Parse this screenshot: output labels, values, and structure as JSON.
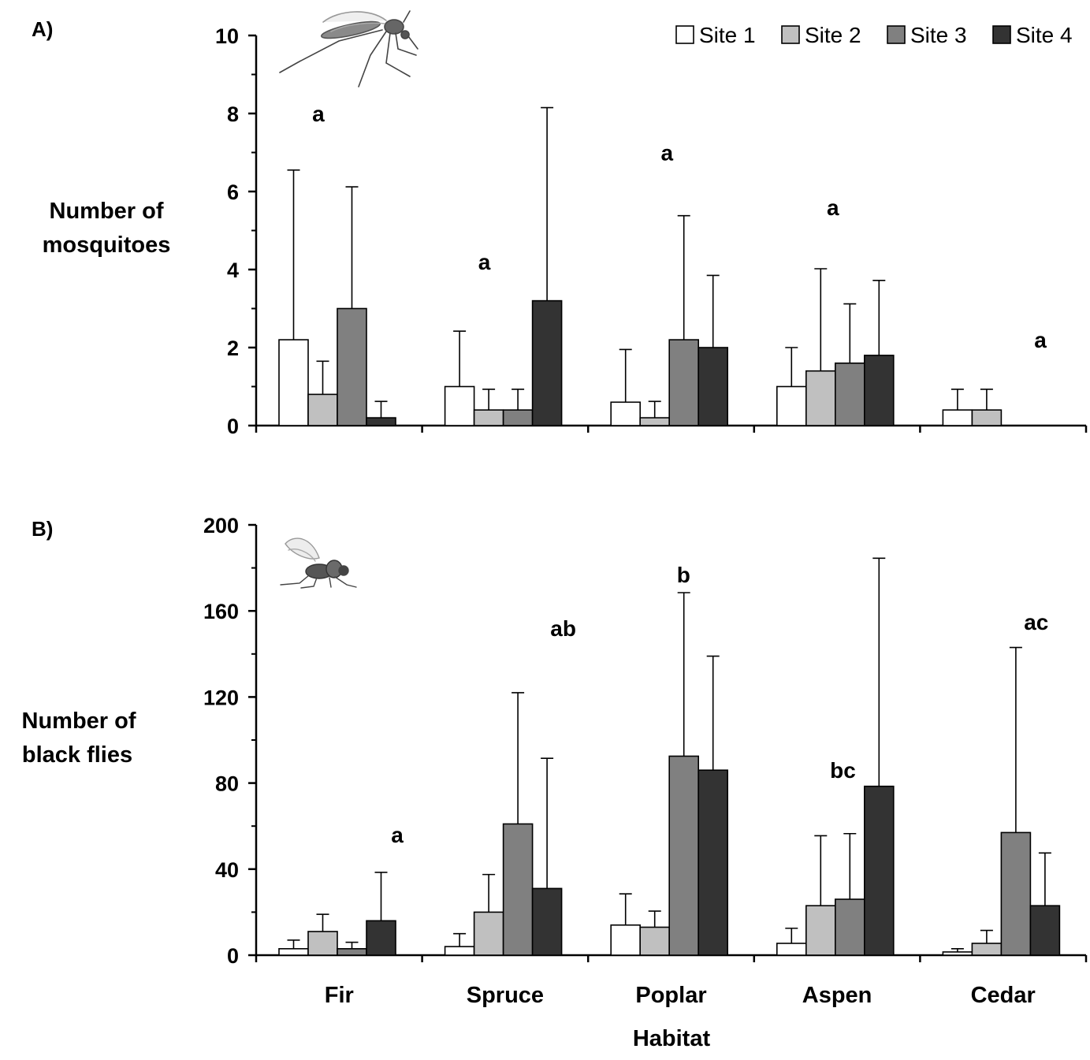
{
  "site_colors": [
    "#ffffff",
    "#c0c0c0",
    "#808080",
    "#333333"
  ],
  "x_axis_title": "Habitat",
  "chart_data": [
    {
      "type": "bar",
      "panel_label": "A)",
      "ylabel_lines": [
        "Number of",
        "mosquitoes"
      ],
      "ylim": [
        0,
        10
      ],
      "y_ticks": [
        0,
        2,
        4,
        6,
        8,
        10
      ],
      "grid": false,
      "legend": "top-right",
      "icon": "mosquito-icon",
      "categories": [
        "Fir",
        "Spruce",
        "Poplar",
        "Aspen",
        "Cedar"
      ],
      "series": [
        {
          "name": "Site 1",
          "values": [
            2.2,
            1.0,
            0.6,
            1.0,
            0.4
          ],
          "error_upper": [
            6.55,
            2.42,
            1.95,
            2.0,
            0.93
          ]
        },
        {
          "name": "Site 2",
          "values": [
            0.8,
            0.4,
            0.2,
            1.4,
            0.4
          ],
          "error_upper": [
            1.65,
            0.93,
            0.62,
            4.02,
            0.93
          ]
        },
        {
          "name": "Site 3",
          "values": [
            3.0,
            0.4,
            2.2,
            1.6,
            0
          ],
          "error_upper": [
            6.12,
            0.93,
            5.38,
            3.12,
            null
          ]
        },
        {
          "name": "Site 4",
          "values": [
            0.2,
            3.2,
            2.0,
            1.8,
            0
          ],
          "error_upper": [
            0.62,
            8.15,
            3.85,
            3.72,
            null
          ]
        }
      ],
      "annotations": [
        {
          "category": "Fir",
          "text": "a",
          "y": 8.0
        },
        {
          "category": "Spruce",
          "text": "a",
          "y": 4.2
        },
        {
          "category": "Poplar",
          "text": "a",
          "y": 7.0
        },
        {
          "category": "Aspen",
          "text": "a",
          "y": 5.6
        },
        {
          "category": "Cedar",
          "text": "a",
          "y": 2.2
        }
      ]
    },
    {
      "type": "bar",
      "panel_label": "B)",
      "ylabel_lines": [
        "Number of",
        "black flies"
      ],
      "ylim": [
        0,
        200
      ],
      "y_ticks": [
        0,
        40,
        80,
        120,
        160,
        200
      ],
      "grid": false,
      "icon": "black-fly-icon",
      "categories": [
        "Fir",
        "Spruce",
        "Poplar",
        "Aspen",
        "Cedar"
      ],
      "series": [
        {
          "name": "Site 1",
          "values": [
            3,
            4,
            14,
            5.5,
            1.5
          ],
          "error_upper": [
            7,
            10,
            28.5,
            12.5,
            3
          ]
        },
        {
          "name": "Site 2",
          "values": [
            11,
            20,
            13,
            23,
            5.5
          ],
          "error_upper": [
            19,
            37.5,
            20.5,
            55.5,
            11.5
          ]
        },
        {
          "name": "Site 3",
          "values": [
            3,
            61,
            92.5,
            26,
            57
          ],
          "error_upper": [
            6,
            122,
            168.5,
            56.5,
            143
          ]
        },
        {
          "name": "Site 4",
          "values": [
            16,
            31,
            86,
            78.5,
            23
          ],
          "error_upper": [
            38.5,
            91.5,
            139,
            184.5,
            47.5
          ]
        }
      ],
      "annotations": [
        {
          "category": "Fir",
          "text": "a",
          "y": 56
        },
        {
          "category": "Spruce",
          "text": "ab",
          "y": 152
        },
        {
          "category": "Poplar",
          "text": "b",
          "y": 177
        },
        {
          "category": "Aspen",
          "text": "bc",
          "y": 86
        },
        {
          "category": "Cedar",
          "text": "ac",
          "y": 155
        }
      ]
    }
  ]
}
